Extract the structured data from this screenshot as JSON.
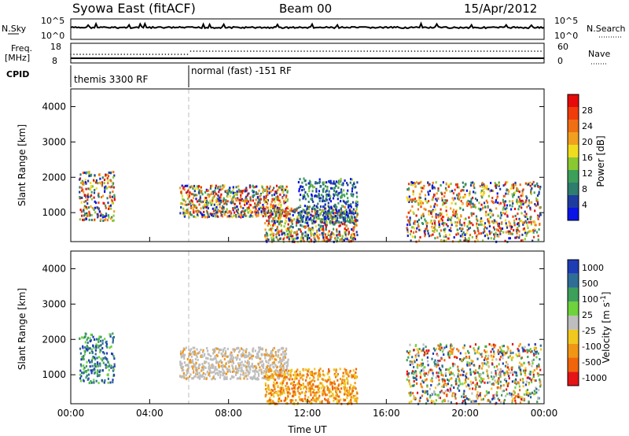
{
  "header": {
    "site": "Syowa East (fitACF)",
    "beam": "Beam 00",
    "date": "15/Apr/2012"
  },
  "top_panels": {
    "nsky_label": "N.Sky",
    "nsky_ticks": [
      "10^5",
      "10^0"
    ],
    "nsearch_label": "N.Search",
    "nsearch_ticks": [
      "10^5",
      "10^0"
    ],
    "freq_label": "Freq.",
    "freq_unit": "[MHz]",
    "freq_ticks": [
      "18",
      "8"
    ],
    "nave_label": "Nave",
    "nave_ticks": [
      "60",
      "0"
    ],
    "cpid_label": "CPID",
    "cpid_segments": [
      {
        "label": "themis 3300 RF",
        "start": 0,
        "end": 6
      },
      {
        "label": "normal (fast) -151 RF",
        "start": 6,
        "end": 24
      }
    ]
  },
  "chart_data": [
    {
      "type": "heatmap",
      "title": "",
      "xlabel": "Time UT",
      "ylabel": "Slant Range [km]",
      "xlim": [
        0,
        24
      ],
      "ylim": [
        180,
        4500
      ],
      "x_ticks": [
        "00:00",
        "04:00",
        "08:00",
        "12:00",
        "16:00",
        "20:00",
        "00:00"
      ],
      "y_ticks": [
        1000,
        2000,
        3000,
        4000
      ],
      "colorbar": {
        "label": "Power [dB]",
        "ticks": [
          "4",
          "8",
          "12",
          "16",
          "20",
          "24",
          "28"
        ],
        "colors": [
          "#0a14e6",
          "#1e3ca0",
          "#2e7d6e",
          "#3ca05a",
          "#8ac832",
          "#f0dc1e",
          "#f0a01e",
          "#f06e14",
          "#f03c0a",
          "#e60a0a"
        ]
      },
      "echo_regions": [
        {
          "t0": 0.4,
          "t1": 2.2,
          "r0": 800,
          "r1": 2200,
          "level": "mixed"
        },
        {
          "t0": 5.5,
          "t1": 11.0,
          "r0": 900,
          "r1": 1800,
          "level": "mixed"
        },
        {
          "t0": 9.8,
          "t1": 14.5,
          "r0": 200,
          "r1": 1200,
          "level": "mixed"
        },
        {
          "t0": 11.5,
          "t1": 14.5,
          "r0": 700,
          "r1": 2000,
          "level": "low"
        },
        {
          "t0": 17.0,
          "t1": 23.8,
          "r0": 200,
          "r1": 1900,
          "level": "mixed"
        }
      ]
    },
    {
      "type": "heatmap",
      "title": "",
      "xlabel": "Time UT",
      "ylabel": "Slant Range [km]",
      "xlim": [
        0,
        24
      ],
      "ylim": [
        180,
        4500
      ],
      "x_ticks": [
        "00:00",
        "04:00",
        "08:00",
        "12:00",
        "16:00",
        "20:00",
        "00:00"
      ],
      "y_ticks": [
        1000,
        2000,
        3000,
        4000
      ],
      "colorbar": {
        "label": "Velocity [m s^-1]",
        "ticks": [
          "1000",
          "500",
          "100",
          "25",
          "-25",
          "-100",
          "-500",
          "-1000"
        ],
        "colors": [
          "#1e3cb4",
          "#2e6e96",
          "#3ca05a",
          "#6ed23c",
          "#bebebe",
          "#f0c81e",
          "#f09614",
          "#f0640a",
          "#e61414"
        ]
      },
      "echo_regions": [
        {
          "t0": 0.4,
          "t1": 2.2,
          "r0": 800,
          "r1": 2200,
          "level": "toward"
        },
        {
          "t0": 5.5,
          "t1": 11.0,
          "r0": 900,
          "r1": 1800,
          "level": "ground"
        },
        {
          "t0": 9.8,
          "t1": 14.5,
          "r0": 200,
          "r1": 1200,
          "level": "away"
        },
        {
          "t0": 17.0,
          "t1": 23.8,
          "r0": 200,
          "r1": 1900,
          "level": "mixed"
        }
      ]
    }
  ]
}
